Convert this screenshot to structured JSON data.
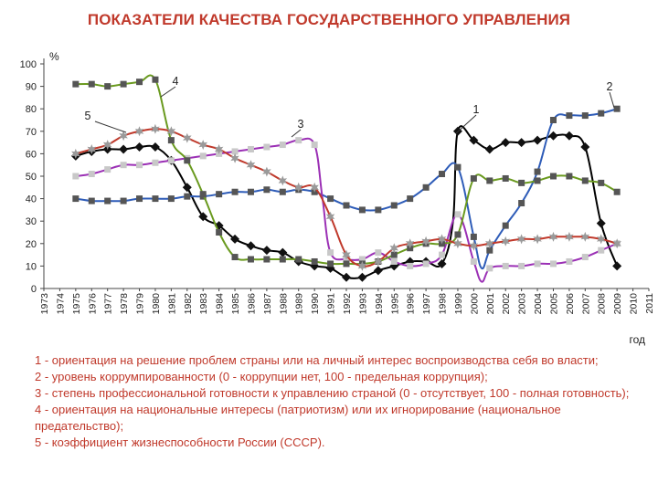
{
  "page": {
    "title": "ПОКАЗАТЕЛИ КАЧЕСТВА ГОСУДАРСТВЕННОГО УПРАВЛЕНИЯ"
  },
  "chart_data": {
    "type": "line",
    "title": "ПОКАЗАТЕЛИ КАЧЕСТВА ГОСУДАРСТВЕННОГО УПРАВЛЕНИЯ",
    "ylabel": "%",
    "xlabel": "год",
    "ylim": [
      0,
      100
    ],
    "yticks": [
      0,
      10,
      20,
      30,
      40,
      50,
      60,
      70,
      80,
      90,
      100
    ],
    "xlim": [
      1973,
      2011
    ],
    "grid": false,
    "categories": [
      "1973",
      "1974",
      "1975",
      "1976",
      "1977",
      "1978",
      "1979",
      "1980",
      "1981",
      "1982",
      "1983",
      "1984",
      "1985",
      "1986",
      "1987",
      "1988",
      "1989",
      "1990",
      "1991",
      "1992",
      "1993",
      "1994",
      "1995",
      "1996",
      "1997",
      "1998",
      "1999",
      "2000",
      "2001",
      "2002",
      "2003",
      "2004",
      "2005",
      "2006",
      "2007",
      "2008",
      "2009",
      "2010",
      "2011"
    ],
    "series": [
      {
        "name": "1",
        "color": "#000000",
        "marker": "diamond",
        "points": [
          [
            1975,
            59
          ],
          [
            1976,
            61
          ],
          [
            1977,
            62
          ],
          [
            1978,
            62
          ],
          [
            1979,
            63
          ],
          [
            1980,
            63
          ],
          [
            1981,
            57
          ],
          [
            1982,
            45
          ],
          [
            1983,
            32
          ],
          [
            1984,
            28
          ],
          [
            1985,
            22
          ],
          [
            1986,
            19
          ],
          [
            1987,
            17
          ],
          [
            1988,
            16
          ],
          [
            1989,
            12
          ],
          [
            1990,
            10
          ],
          [
            1991,
            9
          ],
          [
            1992,
            5
          ],
          [
            1993,
            5
          ],
          [
            1994,
            8
          ],
          [
            1995,
            10
          ],
          [
            1996,
            12
          ],
          [
            1997,
            12
          ],
          [
            1998,
            11
          ],
          [
            1998.7,
            30
          ],
          [
            1999,
            70
          ],
          [
            2000,
            66
          ],
          [
            2001,
            62
          ],
          [
            2002,
            65
          ],
          [
            2003,
            65
          ],
          [
            2004,
            66
          ],
          [
            2005,
            68
          ],
          [
            2006,
            68
          ],
          [
            2007,
            63
          ],
          [
            2008,
            29
          ],
          [
            2009,
            10
          ]
        ]
      },
      {
        "name": "2",
        "color": "#2e5cb8",
        "marker": "square",
        "points": [
          [
            1975,
            40
          ],
          [
            1976,
            39
          ],
          [
            1977,
            39
          ],
          [
            1978,
            39
          ],
          [
            1979,
            40
          ],
          [
            1980,
            40
          ],
          [
            1981,
            40
          ],
          [
            1982,
            41
          ],
          [
            1983,
            41
          ],
          [
            1984,
            42
          ],
          [
            1985,
            43
          ],
          [
            1986,
            43
          ],
          [
            1987,
            44
          ],
          [
            1988,
            43
          ],
          [
            1989,
            44
          ],
          [
            1990,
            43
          ],
          [
            1991,
            40
          ],
          [
            1992,
            37
          ],
          [
            1993,
            35
          ],
          [
            1994,
            35
          ],
          [
            1995,
            37
          ],
          [
            1996,
            40
          ],
          [
            1997,
            45
          ],
          [
            1998,
            51
          ],
          [
            1999,
            54
          ],
          [
            2000,
            23
          ],
          [
            2000.5,
            9
          ],
          [
            2001,
            17
          ],
          [
            2002,
            28
          ],
          [
            2003,
            38
          ],
          [
            2004,
            52
          ],
          [
            2005,
            75
          ],
          [
            2006,
            77
          ],
          [
            2007,
            77
          ],
          [
            2008,
            78
          ],
          [
            2009,
            80
          ]
        ]
      },
      {
        "name": "3",
        "color": "#9b30b5",
        "marker": "square",
        "points": [
          [
            1975,
            50
          ],
          [
            1976,
            51
          ],
          [
            1977,
            53
          ],
          [
            1978,
            55
          ],
          [
            1979,
            55
          ],
          [
            1980,
            56
          ],
          [
            1981,
            57
          ],
          [
            1982,
            58
          ],
          [
            1983,
            59
          ],
          [
            1984,
            60
          ],
          [
            1985,
            61
          ],
          [
            1986,
            62
          ],
          [
            1987,
            63
          ],
          [
            1988,
            64
          ],
          [
            1989,
            66
          ],
          [
            1990,
            64
          ],
          [
            1990.5,
            40
          ],
          [
            1991,
            16
          ],
          [
            1992,
            13
          ],
          [
            1993,
            13
          ],
          [
            1994,
            16
          ],
          [
            1995,
            12
          ],
          [
            1996,
            10
          ],
          [
            1997,
            11
          ],
          [
            1998,
            15
          ],
          [
            1999,
            33
          ],
          [
            2000,
            12
          ],
          [
            2000.5,
            3
          ],
          [
            2001,
            9
          ],
          [
            2002,
            10
          ],
          [
            2003,
            10
          ],
          [
            2004,
            11
          ],
          [
            2005,
            11
          ],
          [
            2006,
            12
          ],
          [
            2007,
            14
          ],
          [
            2008,
            17
          ],
          [
            2009,
            20
          ]
        ]
      },
      {
        "name": "4",
        "color": "#6a9a1f",
        "marker": "square",
        "points": [
          [
            1975,
            91
          ],
          [
            1976,
            91
          ],
          [
            1977,
            90
          ],
          [
            1978,
            91
          ],
          [
            1979,
            92
          ],
          [
            1980,
            93
          ],
          [
            1981,
            66
          ],
          [
            1982,
            57
          ],
          [
            1983,
            42
          ],
          [
            1984,
            25
          ],
          [
            1985,
            14
          ],
          [
            1986,
            13
          ],
          [
            1987,
            13
          ],
          [
            1988,
            13
          ],
          [
            1989,
            13
          ],
          [
            1990,
            12
          ],
          [
            1991,
            11
          ],
          [
            1992,
            11
          ],
          [
            1993,
            11
          ],
          [
            1994,
            12
          ],
          [
            1995,
            15
          ],
          [
            1996,
            18
          ],
          [
            1997,
            20
          ],
          [
            1998,
            20
          ],
          [
            1999,
            24
          ],
          [
            2000,
            49
          ],
          [
            2001,
            48
          ],
          [
            2002,
            49
          ],
          [
            2003,
            47
          ],
          [
            2004,
            48
          ],
          [
            2005,
            50
          ],
          [
            2006,
            50
          ],
          [
            2007,
            48
          ],
          [
            2008,
            47
          ],
          [
            2009,
            43
          ]
        ]
      },
      {
        "name": "5",
        "color": "#c0392b",
        "marker": "star",
        "points": [
          [
            1975,
            60
          ],
          [
            1976,
            62
          ],
          [
            1977,
            64
          ],
          [
            1978,
            68
          ],
          [
            1979,
            70
          ],
          [
            1980,
            71
          ],
          [
            1981,
            70
          ],
          [
            1982,
            67
          ],
          [
            1983,
            64
          ],
          [
            1984,
            62
          ],
          [
            1985,
            58
          ],
          [
            1986,
            55
          ],
          [
            1987,
            52
          ],
          [
            1988,
            48
          ],
          [
            1989,
            45
          ],
          [
            1990,
            45
          ],
          [
            1991,
            32
          ],
          [
            1992,
            15
          ],
          [
            1993,
            10
          ],
          [
            1994,
            12
          ],
          [
            1995,
            18
          ],
          [
            1996,
            20
          ],
          [
            1997,
            21
          ],
          [
            1998,
            22
          ],
          [
            1999,
            20
          ],
          [
            2000,
            19
          ],
          [
            2001,
            20
          ],
          [
            2002,
            21
          ],
          [
            2003,
            22
          ],
          [
            2004,
            22
          ],
          [
            2005,
            23
          ],
          [
            2006,
            23
          ],
          [
            2007,
            23
          ],
          [
            2008,
            22
          ],
          [
            2009,
            20
          ]
        ]
      }
    ],
    "annotations": [
      {
        "label": "1",
        "series": "1"
      },
      {
        "label": "2",
        "series": "2"
      },
      {
        "label": "3",
        "series": "3"
      },
      {
        "label": "4",
        "series": "4"
      },
      {
        "label": "5",
        "series": "5"
      }
    ]
  },
  "legend": {
    "items": [
      "1 - ориентация на решение проблем страны или на личный интерес воспроизводства себя во власти;",
      "2 - уровень коррумпированности (0 - коррупции нет, 100 - предельная коррупция);",
      "3 - степень профессиональной готовности к управлению страной (0 - отсутствует, 100 - полная готовность);",
      "4 - ориентация на национальные интересы (патриотизм) или их игнорирование (национальное предательство);",
      "5 - коэффициент жизнеспособности России (СССР)."
    ]
  }
}
